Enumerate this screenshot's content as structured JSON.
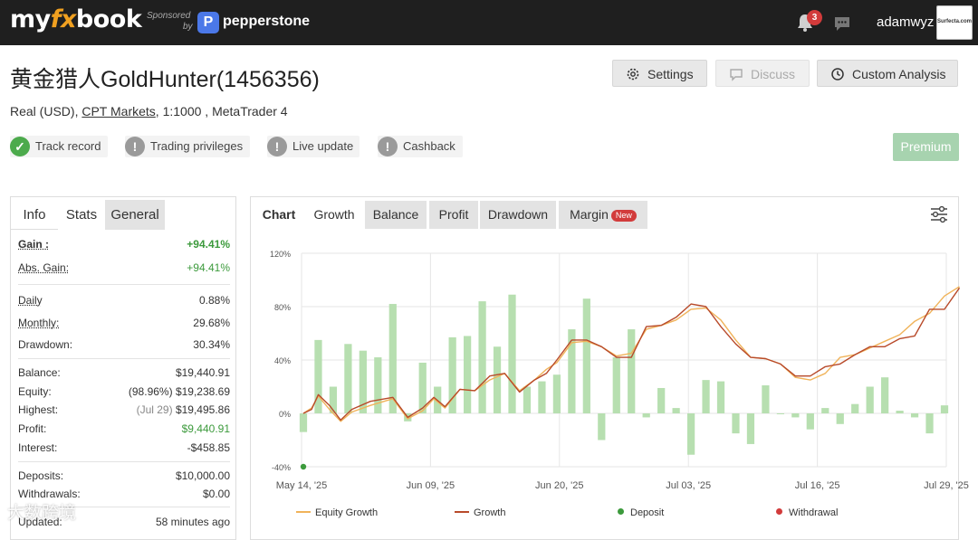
{
  "brand": {
    "logo_pre": "my",
    "logo_fx": "fx",
    "logo_post": "book",
    "sponsored": "Sponsored",
    "by": "by",
    "partner": "pepperstone",
    "partner_mark": "P"
  },
  "header": {
    "notification_count": "3",
    "username": "adamwyz",
    "avatar_text": "Surfecta.com"
  },
  "page": {
    "title": "黄金猎人GoldHunter(1456356)",
    "subtitle_pre": "Real (USD),",
    "broker": "CPT Markets",
    "subtitle_post": ", 1:1000 , MetaTrader 4"
  },
  "actions": {
    "settings": "Settings",
    "discuss": "Discuss",
    "custom_analysis": "Custom Analysis",
    "premium": "Premium"
  },
  "status_items": [
    {
      "label": "Track record",
      "state": "verified"
    },
    {
      "label": "Trading privileges",
      "state": "unverified"
    },
    {
      "label": "Live update",
      "state": "unverified"
    },
    {
      "label": "Cashback",
      "state": "unverified"
    }
  ],
  "left_tabs": [
    "Info",
    "Stats",
    "General"
  ],
  "stats": {
    "gain_label": "Gain :",
    "gain": "+94.41%",
    "abs_gain_label": "Abs. Gain:",
    "abs_gain": "+94.41%",
    "daily_label": "Daily",
    "daily": "0.88%",
    "monthly_label": "Monthly:",
    "monthly": "29.68%",
    "drawdown_label": "Drawdown:",
    "drawdown": "30.34%",
    "balance_label": "Balance:",
    "balance": "$19,440.91",
    "equity_label": "Equity:",
    "equity_pct": "(98.96%)",
    "equity": "$19,238.69",
    "highest_label": "Highest:",
    "highest_date": "(Jul 29)",
    "highest": "$19,495.86",
    "profit_label": "Profit:",
    "profit": "$9,440.91",
    "interest_label": "Interest:",
    "interest": "-$458.85",
    "deposits_label": "Deposits:",
    "deposits": "$10,000.00",
    "withdrawals_label": "Withdrawals:",
    "withdrawals": "$0.00",
    "updated_label": "Updated:",
    "updated": "58 minutes ago"
  },
  "chart_tabs": {
    "label": "Chart",
    "items": [
      "Growth",
      "Balance",
      "Profit",
      "Drawdown",
      "Margin"
    ],
    "new_badge": "New",
    "active": "Growth"
  },
  "chart_data": {
    "type": "bar+line",
    "y_ticks": [
      "120%",
      "80%",
      "40%",
      "0%",
      "-40%"
    ],
    "ylim": [
      -40,
      120
    ],
    "x_ticks": [
      "May 14, '25",
      "Jun 09, '25",
      "Jun 20, '25",
      "Jul 03, '25",
      "Jul 16, '25",
      "Jul 29, '25"
    ],
    "grid": true,
    "legend_position": "bottom",
    "bar_color": "#b7dfb0",
    "daily_bars": [
      -14,
      55,
      20,
      52,
      47,
      42,
      82,
      -6,
      38,
      20,
      57,
      58,
      84,
      50,
      89,
      20,
      24,
      29,
      63,
      86,
      -20,
      42,
      63,
      -3,
      19,
      4,
      -31,
      25,
      24,
      -15,
      -23,
      21,
      0,
      -3,
      -12,
      4,
      -8,
      7,
      20,
      27,
      2,
      -3,
      -15,
      6
    ],
    "series": [
      {
        "name": "Equity Growth",
        "color": "#f0b35a",
        "points": [
          [
            0,
            0
          ],
          [
            0.55,
            4
          ],
          [
            1,
            13
          ],
          [
            1.75,
            3
          ],
          [
            2.5,
            -6
          ],
          [
            3.25,
            1
          ],
          [
            4.5,
            6
          ],
          [
            6,
            11
          ],
          [
            7,
            -4
          ],
          [
            8,
            2
          ],
          [
            8.75,
            11
          ],
          [
            9.5,
            4
          ],
          [
            10.5,
            18
          ],
          [
            11.5,
            17
          ],
          [
            12.5,
            25
          ],
          [
            13.5,
            30
          ],
          [
            14.5,
            17
          ],
          [
            15.5,
            25
          ],
          [
            16.3,
            33
          ],
          [
            17,
            38
          ],
          [
            18,
            53
          ],
          [
            19,
            54
          ],
          [
            20,
            50
          ],
          [
            21,
            43
          ],
          [
            22,
            45
          ],
          [
            23,
            63
          ],
          [
            24,
            66
          ],
          [
            25,
            70
          ],
          [
            26,
            78
          ],
          [
            27,
            79
          ],
          [
            28,
            70
          ],
          [
            29,
            55
          ],
          [
            30,
            42
          ],
          [
            31,
            41
          ],
          [
            32,
            37
          ],
          [
            33,
            27
          ],
          [
            34,
            25
          ],
          [
            35,
            30
          ],
          [
            36,
            42
          ],
          [
            37,
            44
          ],
          [
            38,
            49
          ],
          [
            39,
            54
          ],
          [
            40,
            59
          ],
          [
            41,
            69
          ],
          [
            42,
            75
          ],
          [
            43,
            88
          ],
          [
            44,
            95
          ]
        ]
      },
      {
        "name": "Growth",
        "color": "#b84a2a",
        "points": [
          [
            0,
            0
          ],
          [
            0.55,
            3
          ],
          [
            1,
            14
          ],
          [
            1.75,
            6
          ],
          [
            2.5,
            -5
          ],
          [
            3.25,
            3
          ],
          [
            4.5,
            9
          ],
          [
            6,
            12
          ],
          [
            7,
            -3
          ],
          [
            8,
            4
          ],
          [
            8.75,
            12
          ],
          [
            9.5,
            5
          ],
          [
            10.5,
            18
          ],
          [
            11.5,
            17
          ],
          [
            12.5,
            28
          ],
          [
            13.5,
            30
          ],
          [
            14.5,
            16
          ],
          [
            15.5,
            25
          ],
          [
            16.3,
            30
          ],
          [
            17,
            40
          ],
          [
            18,
            55
          ],
          [
            19,
            55
          ],
          [
            20,
            50
          ],
          [
            21,
            42
          ],
          [
            22,
            42
          ],
          [
            23,
            65
          ],
          [
            24,
            66
          ],
          [
            25,
            72
          ],
          [
            26,
            82
          ],
          [
            27,
            80
          ],
          [
            28,
            65
          ],
          [
            29,
            52
          ],
          [
            30,
            42
          ],
          [
            31,
            41
          ],
          [
            32,
            37
          ],
          [
            33,
            28
          ],
          [
            34,
            28
          ],
          [
            35,
            35
          ],
          [
            36,
            37
          ],
          [
            37,
            44
          ],
          [
            38,
            50
          ],
          [
            39,
            50
          ],
          [
            40,
            56
          ],
          [
            41,
            58
          ],
          [
            42,
            78
          ],
          [
            43,
            78
          ],
          [
            44,
            94
          ]
        ]
      }
    ],
    "deposit_marker": {
      "x": 0,
      "y": -40
    },
    "legend": [
      {
        "name": "Equity Growth",
        "kind": "line",
        "color": "#f0b35a"
      },
      {
        "name": "Growth",
        "kind": "line",
        "color": "#b84a2a"
      },
      {
        "name": "Deposit",
        "kind": "dot",
        "color": "#3c9a3c"
      },
      {
        "name": "Withdrawal",
        "kind": "dot",
        "color": "#d23b3b"
      }
    ]
  },
  "watermark": "大数跨境"
}
